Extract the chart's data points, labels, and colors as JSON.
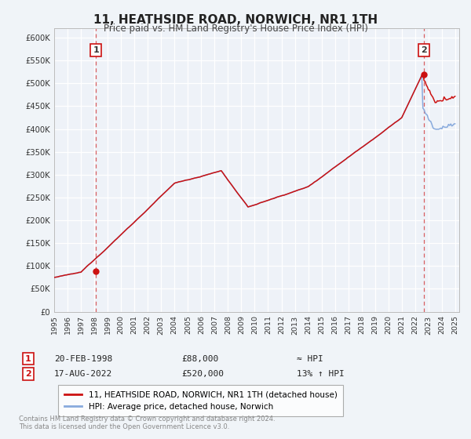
{
  "title": "11, HEATHSIDE ROAD, NORWICH, NR1 1TH",
  "subtitle": "Price paid vs. HM Land Registry's House Price Index (HPI)",
  "background_color": "#f0f4f8",
  "plot_bg_color": "#eef2f8",
  "hpi_color": "#88aadd",
  "price_color": "#cc1111",
  "ylim": [
    0,
    620000
  ],
  "xlim_start": 1995.0,
  "xlim_end": 2025.3,
  "yticks": [
    0,
    50000,
    100000,
    150000,
    200000,
    250000,
    300000,
    350000,
    400000,
    450000,
    500000,
    550000,
    600000
  ],
  "ytick_labels": [
    "£0",
    "£50K",
    "£100K",
    "£150K",
    "£200K",
    "£250K",
    "£300K",
    "£350K",
    "£400K",
    "£450K",
    "£500K",
    "£550K",
    "£600K"
  ],
  "xticks": [
    1995,
    1996,
    1997,
    1998,
    1999,
    2000,
    2001,
    2002,
    2003,
    2004,
    2005,
    2006,
    2007,
    2008,
    2009,
    2010,
    2011,
    2012,
    2013,
    2014,
    2015,
    2016,
    2017,
    2018,
    2019,
    2020,
    2021,
    2022,
    2023,
    2024,
    2025
  ],
  "marker1_x": 1998.13,
  "marker1_y": 88000,
  "marker2_x": 2022.63,
  "marker2_y": 520000,
  "vline1_x": 1998.13,
  "vline2_x": 2022.63,
  "legend_label1": "11, HEATHSIDE ROAD, NORWICH, NR1 1TH (detached house)",
  "legend_label2": "HPI: Average price, detached house, Norwich",
  "ann1_date": "20-FEB-1998",
  "ann1_price": "£88,000",
  "ann1_hpi": "≈ HPI",
  "ann2_date": "17-AUG-2022",
  "ann2_price": "£520,000",
  "ann2_hpi": "13% ↑ HPI",
  "footnote1": "Contains HM Land Registry data © Crown copyright and database right 2024.",
  "footnote2": "This data is licensed under the Open Government Licence v3.0."
}
